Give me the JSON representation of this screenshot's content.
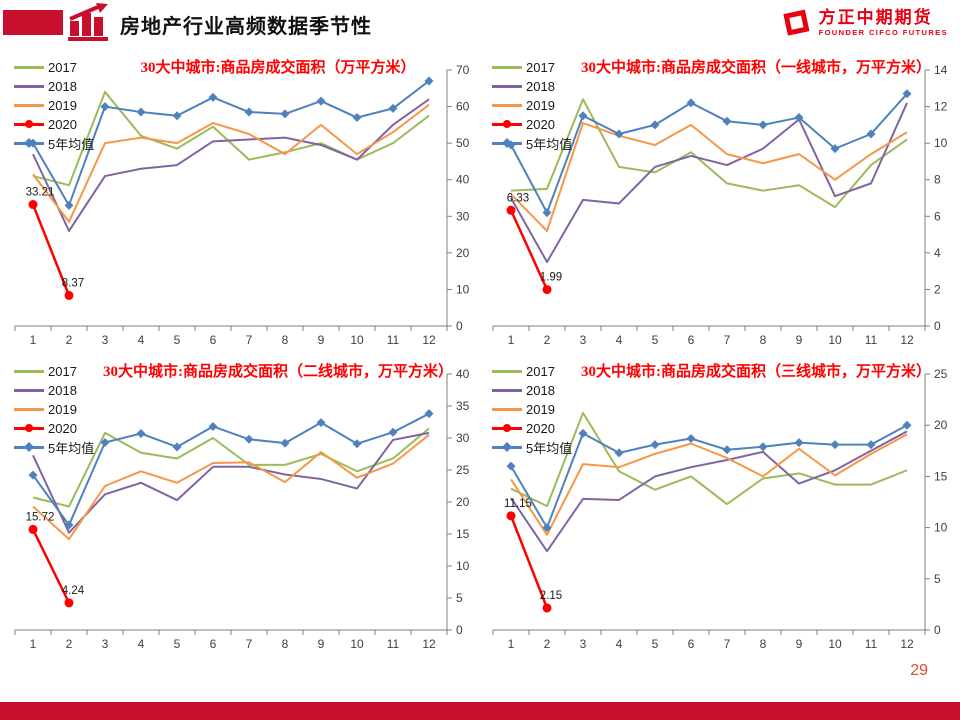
{
  "header": {
    "title": "房地产行业高频数据季节性",
    "accent_color": "#C8102E",
    "logo": {
      "brand": "方正中期期货",
      "sub": "FOUNDER CIFCO FUTURES",
      "color": "#E60012"
    }
  },
  "footer": {
    "page_number": "29",
    "page_number_color": "#DD4B27",
    "bar_color": "#C8102E"
  },
  "legend_labels": [
    "2017",
    "2018",
    "2019",
    "2020",
    "5年均值"
  ],
  "chart_data": [
    {
      "type": "line",
      "title": "30大中城市:商品房成交面积（万平方米）",
      "x": [
        1,
        2,
        3,
        4,
        5,
        6,
        7,
        8,
        9,
        10,
        11,
        12
      ],
      "ylim": [
        0,
        70
      ],
      "ytick_step": 10,
      "grid": false,
      "legend_position": "top-left",
      "series": [
        {
          "name": "2017",
          "color": "#9BBB59",
          "marker": "none",
          "values": [
            41,
            38.5,
            64,
            52,
            48.5,
            54.5,
            45.5,
            47.5,
            50,
            45.5,
            50,
            57.5
          ]
        },
        {
          "name": "2018",
          "color": "#8064A2",
          "marker": "none",
          "values": [
            47,
            26,
            41,
            43,
            44,
            50.5,
            51,
            51.5,
            49.5,
            45.5,
            55,
            62
          ]
        },
        {
          "name": "2019",
          "color": "#F79646",
          "marker": "none",
          "values": [
            41.5,
            28.5,
            50,
            51.5,
            50,
            55.5,
            52.5,
            47,
            55,
            47,
            53,
            60.5
          ]
        },
        {
          "name": "2020",
          "color": "#FF0000",
          "marker": "circle",
          "values": [
            33.21,
            8.37
          ],
          "point_labels": [
            "33.21",
            "8.37"
          ]
        },
        {
          "name": "5年均值",
          "color": "#4F81BD",
          "marker": "diamond",
          "values": [
            50,
            33,
            60,
            58.5,
            57.5,
            62.5,
            58.5,
            58,
            61.5,
            57,
            59.5,
            67
          ]
        }
      ]
    },
    {
      "type": "line",
      "title": "30大中城市:商品房成交面积（一线城市，万平方米）",
      "x": [
        1,
        2,
        3,
        4,
        5,
        6,
        7,
        8,
        9,
        10,
        11,
        12
      ],
      "ylim": [
        0,
        14
      ],
      "ytick_step": 2,
      "grid": false,
      "legend_position": "top-left",
      "series": [
        {
          "name": "2017",
          "color": "#9BBB59",
          "marker": "none",
          "values": [
            7.4,
            7.5,
            12.4,
            8.7,
            8.4,
            9.5,
            7.8,
            7.4,
            7.7,
            6.5,
            8.8,
            10.2
          ]
        },
        {
          "name": "2018",
          "color": "#8064A2",
          "marker": "none",
          "values": [
            7.0,
            3.5,
            6.9,
            6.7,
            8.7,
            9.3,
            8.8,
            9.7,
            11.3,
            7.1,
            7.8,
            12.2
          ]
        },
        {
          "name": "2019",
          "color": "#F79646",
          "marker": "none",
          "values": [
            7.2,
            5.2,
            11.1,
            10.4,
            9.9,
            11.0,
            9.4,
            8.9,
            9.4,
            8.0,
            9.4,
            10.6
          ]
        },
        {
          "name": "2020",
          "color": "#FF0000",
          "marker": "circle",
          "values": [
            6.33,
            1.99
          ],
          "point_labels": [
            "6.33",
            "1.99"
          ]
        },
        {
          "name": "5年均值",
          "color": "#4F81BD",
          "marker": "diamond",
          "values": [
            9.9,
            6.2,
            11.5,
            10.5,
            11.0,
            12.2,
            11.2,
            11.0,
            11.4,
            9.7,
            10.5,
            12.7
          ]
        }
      ]
    },
    {
      "type": "line",
      "title": "30大中城市:商品房成交面积（二线城市，万平方米）",
      "x": [
        1,
        2,
        3,
        4,
        5,
        6,
        7,
        8,
        9,
        10,
        11,
        12
      ],
      "ylim": [
        0,
        40
      ],
      "ytick_step": 5,
      "grid": false,
      "legend_position": "top-left",
      "series": [
        {
          "name": "2017",
          "color": "#9BBB59",
          "marker": "none",
          "values": [
            20.7,
            19.3,
            30.8,
            27.7,
            26.8,
            30.0,
            25.8,
            25.8,
            27.5,
            24.8,
            26.8,
            31.5
          ]
        },
        {
          "name": "2018",
          "color": "#8064A2",
          "marker": "none",
          "values": [
            27.3,
            15.2,
            21.2,
            23.0,
            20.3,
            25.5,
            25.5,
            24.3,
            23.6,
            22.1,
            29.7,
            30.8
          ]
        },
        {
          "name": "2019",
          "color": "#F79646",
          "marker": "none",
          "values": [
            19.3,
            14.2,
            22.5,
            24.8,
            23.0,
            26.1,
            26.2,
            23.1,
            27.8,
            23.8,
            26.0,
            30.5
          ]
        },
        {
          "name": "2020",
          "color": "#FF0000",
          "marker": "circle",
          "values": [
            15.72,
            4.24
          ],
          "point_labels": [
            "15.72",
            "4.24"
          ]
        },
        {
          "name": "5年均值",
          "color": "#4F81BD",
          "marker": "diamond",
          "values": [
            24.2,
            16.4,
            29.3,
            30.7,
            28.6,
            31.8,
            29.8,
            29.2,
            32.4,
            29.1,
            30.9,
            33.8
          ]
        }
      ]
    },
    {
      "type": "line",
      "title": "30大中城市:商品房成交面积（三线城市，万平方米）",
      "x": [
        1,
        2,
        3,
        4,
        5,
        6,
        7,
        8,
        9,
        10,
        11,
        12
      ],
      "ylim": [
        0,
        25
      ],
      "ytick_step": 5,
      "grid": false,
      "legend_position": "top-left",
      "series": [
        {
          "name": "2017",
          "color": "#9BBB59",
          "marker": "none",
          "values": [
            13.8,
            12.1,
            21.2,
            15.5,
            13.7,
            15.0,
            12.3,
            14.8,
            15.3,
            14.2,
            14.2,
            15.6
          ]
        },
        {
          "name": "2018",
          "color": "#8064A2",
          "marker": "none",
          "values": [
            12.9,
            7.7,
            12.8,
            12.7,
            15.0,
            15.9,
            16.6,
            17.4,
            14.3,
            15.6,
            17.5,
            19.4
          ]
        },
        {
          "name": "2019",
          "color": "#F79646",
          "marker": "none",
          "values": [
            14.7,
            9.3,
            16.2,
            15.9,
            17.2,
            18.2,
            16.8,
            15.0,
            17.7,
            15.1,
            17.2,
            19.1
          ]
        },
        {
          "name": "2020",
          "color": "#FF0000",
          "marker": "circle",
          "values": [
            11.15,
            2.15
          ],
          "point_labels": [
            "11.15",
            "2.15"
          ]
        },
        {
          "name": "5年均值",
          "color": "#4F81BD",
          "marker": "diamond",
          "values": [
            16.0,
            10.0,
            19.2,
            17.3,
            18.1,
            18.7,
            17.6,
            17.9,
            18.3,
            18.1,
            18.1,
            20.0
          ]
        }
      ]
    }
  ]
}
